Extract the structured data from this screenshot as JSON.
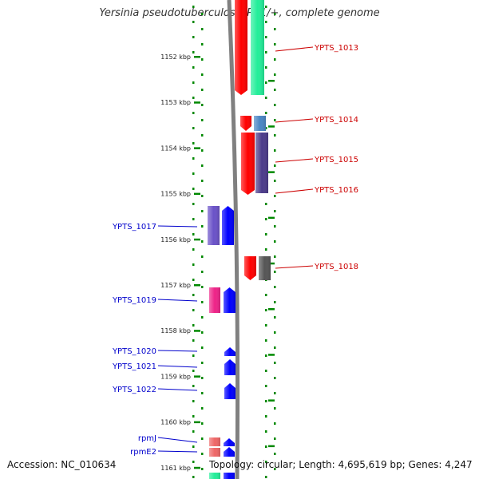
{
  "title": "Yersinia pseudotuberculosis PB1/+, complete genome",
  "footer": {
    "accession": "Accession: NC_010634",
    "info": "Topology: circular; Length: 4,695,619 bp; Genes: 4,247"
  },
  "colors": {
    "axis_ticks": "#008800",
    "backbone": "#808080",
    "left_label": "#0000cc",
    "right_label": "#cc0000"
  },
  "ticks": [
    {
      "label": "1152 kbp",
      "kbp": 1152
    },
    {
      "label": "1153 kbp",
      "kbp": 1153
    },
    {
      "label": "1154 kbp",
      "kbp": 1154
    },
    {
      "label": "1155 kbp",
      "kbp": 1155
    },
    {
      "label": "1156 kbp",
      "kbp": 1156
    },
    {
      "label": "1157 kbp",
      "kbp": 1157
    },
    {
      "label": "1158 kbp",
      "kbp": 1158
    },
    {
      "label": "1159 kbp",
      "kbp": 1159
    },
    {
      "label": "1160 kbp",
      "kbp": 1160
    },
    {
      "label": "1161 kbp",
      "kbp": 1161
    }
  ],
  "genes_right": [
    {
      "name": "YPTS_1013",
      "gene_color": "#ff0000",
      "product_color": "#22ee99"
    },
    {
      "name": "YPTS_1014",
      "gene_color": "#ff0000",
      "product_color": "#4a86c4"
    },
    {
      "name": "YPTS_1015",
      "gene_color": "#ff0000",
      "product_color": "#4b3b8a"
    },
    {
      "name": "YPTS_1016",
      "gene_color": "#ff0000",
      "product_color": "#4b3b8a"
    },
    {
      "name": "YPTS_1018",
      "gene_color": "#ff0000",
      "product_color": "#555555"
    }
  ],
  "genes_left": [
    {
      "name": "YPTS_1017",
      "gene_color": "#0000ff",
      "product_color": "#6a52c8"
    },
    {
      "name": "YPTS_1019",
      "gene_color": "#0000ff",
      "product_color": "#ee2288"
    },
    {
      "name": "YPTS_1020",
      "gene_color": "#0000ff"
    },
    {
      "name": "YPTS_1021",
      "gene_color": "#0000ff"
    },
    {
      "name": "YPTS_1022",
      "gene_color": "#0000ff"
    },
    {
      "name": "rpmJ",
      "gene_color": "#0000ff",
      "product_color": "#ee6666"
    },
    {
      "name": "rpmE2",
      "gene_color": "#0000ff",
      "product_color": "#ee6666"
    }
  ]
}
